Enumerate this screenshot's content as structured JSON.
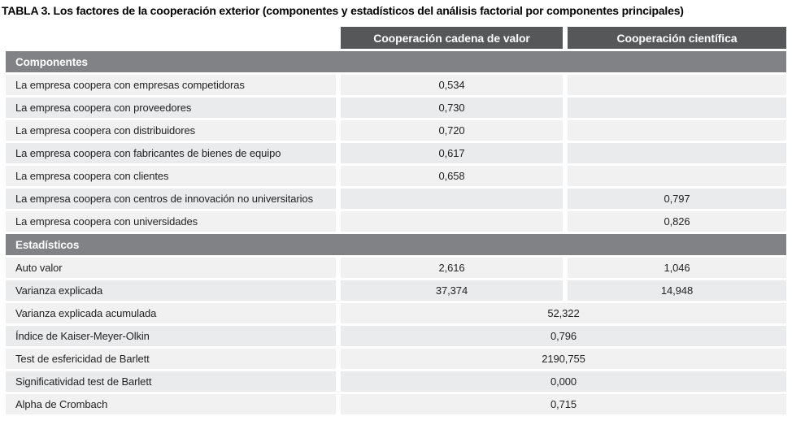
{
  "title": "TABLA 3. Los factores de la cooperación exterior (componentes y estadísticos del análisis factorial por componentes principales)",
  "column_headers": {
    "cadena": "Cooperación cadena de valor",
    "cientifica": "Cooperación científica"
  },
  "sections": [
    {
      "header": "Componentes",
      "rows": [
        {
          "label": "La empresa coopera con empresas competidoras",
          "cadena": "0,534",
          "cientifica": ""
        },
        {
          "label": "La empresa coopera con proveedores",
          "cadena": "0,730",
          "cientifica": ""
        },
        {
          "label": "La empresa coopera con distribuidores",
          "cadena": "0,720",
          "cientifica": ""
        },
        {
          "label": "La empresa coopera con fabricantes de bienes de equipo",
          "cadena": "0,617",
          "cientifica": ""
        },
        {
          "label": "La empresa coopera con clientes",
          "cadena": "0,658",
          "cientifica": ""
        },
        {
          "label": "La empresa coopera con centros de innovación no universitarios",
          "cadena": "",
          "cientifica": "0,797"
        },
        {
          "label": "La empresa coopera con universidades",
          "cadena": "",
          "cientifica": "0,826"
        }
      ]
    },
    {
      "header": "Estadísticos",
      "rows": [
        {
          "label": "Auto valor",
          "cadena": "2,616",
          "cientifica": "1,046"
        },
        {
          "label": "Varianza explicada",
          "cadena": "37,374",
          "cientifica": "14,948"
        },
        {
          "label": "Varianza explicada acumulada",
          "span": "52,322"
        },
        {
          "label": "Índice de Kaiser-Meyer-Olkin",
          "span": "0,796"
        },
        {
          "label": "Test de esfericidad de Barlett",
          "span": "2190,755"
        },
        {
          "label": "Significatividad test de Barlett",
          "span": "0,000"
        },
        {
          "label": "Alpha de Crombach",
          "span": "0,715"
        }
      ]
    }
  ],
  "colors": {
    "column_header_bg": "#565759",
    "section_header_bg": "#808285",
    "row_bg_light": "#f1f1f2",
    "row_bg_dark": "#e9ebec",
    "header_text": "#ffffff",
    "body_text": "#232323"
  }
}
